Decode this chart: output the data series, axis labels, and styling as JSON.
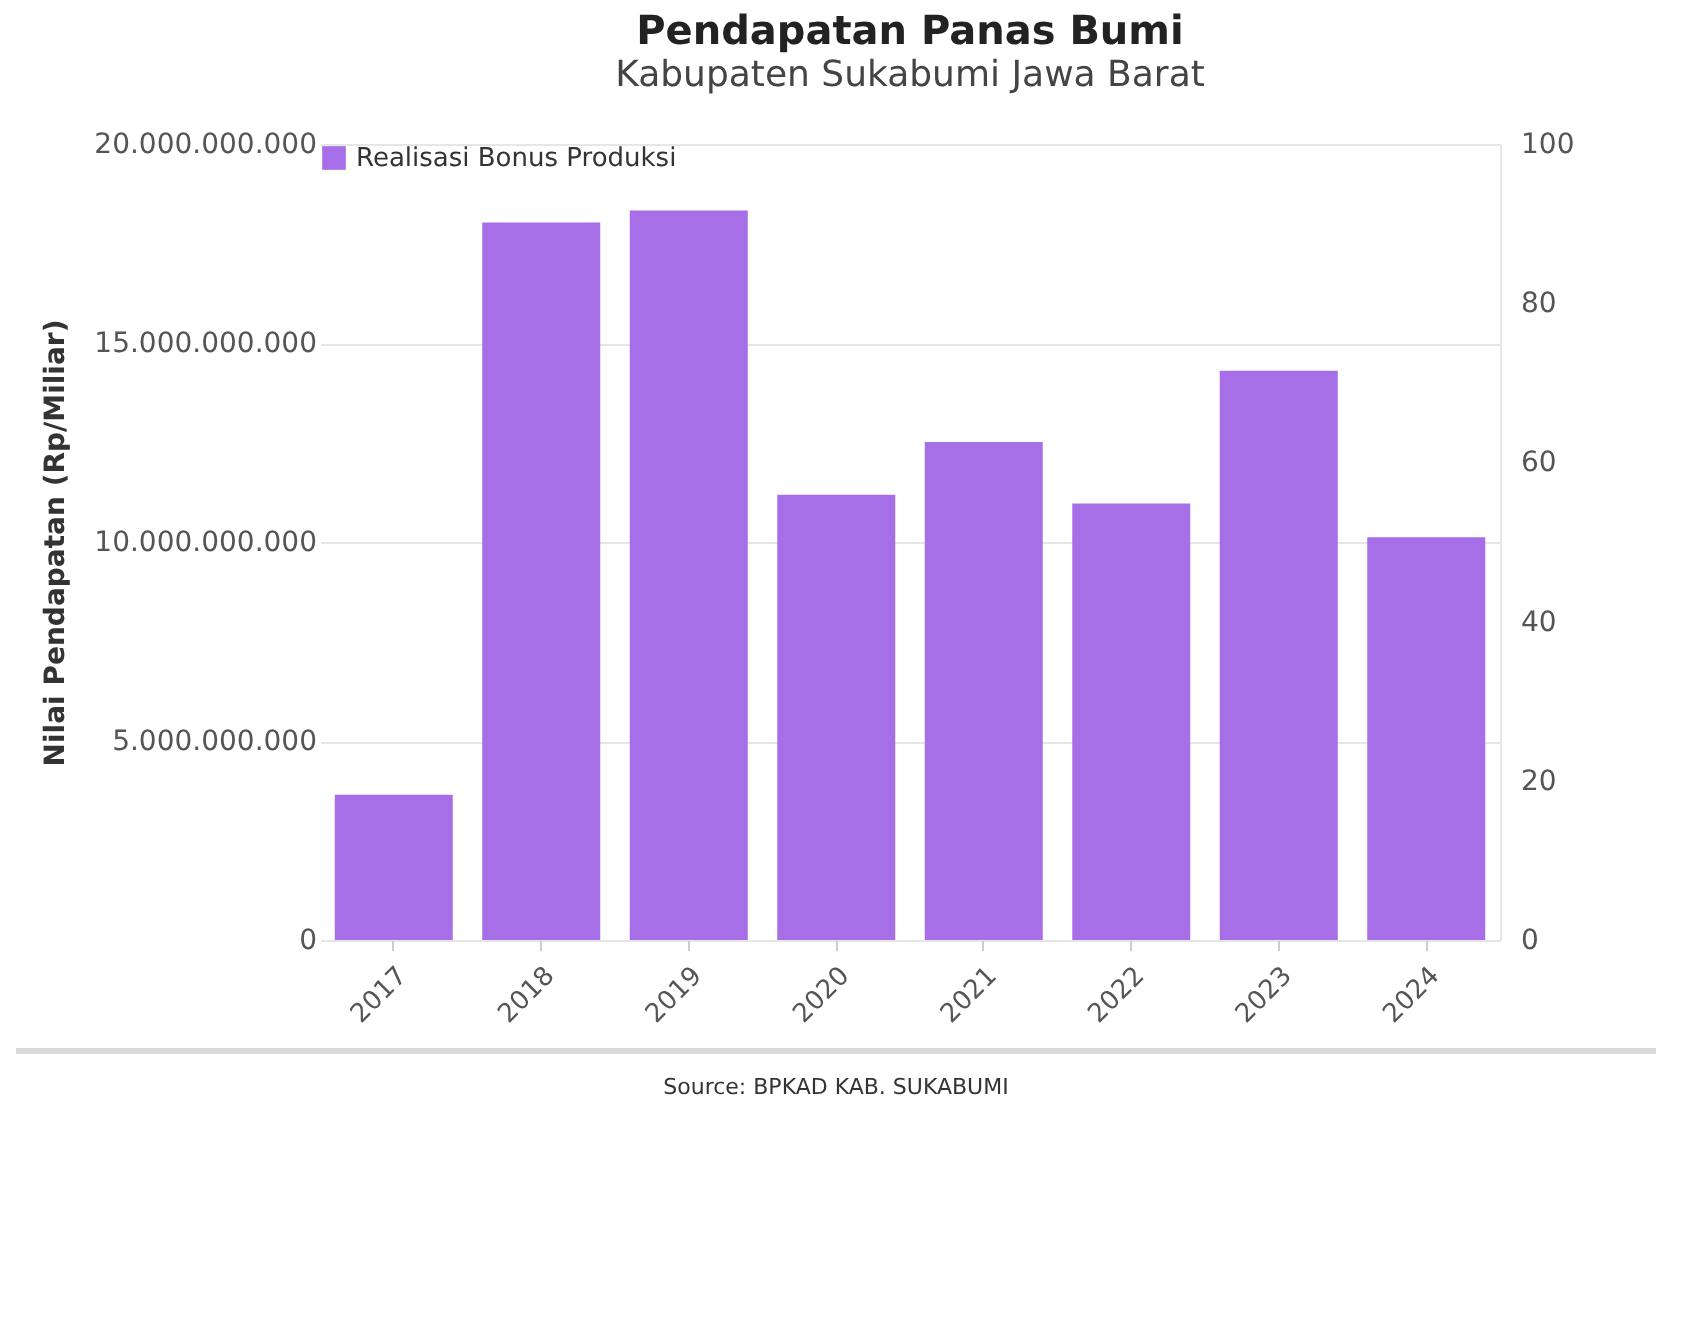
{
  "chart_data": {
    "type": "bar",
    "title": "Pendapatan Panas Bumi",
    "subtitle": "Kabupaten Sukabumi Jawa Barat",
    "ylabel": "Nilai Pendapatan (Rp/Miliar)",
    "categories": [
      "2017",
      "2018",
      "2019",
      "2020",
      "2021",
      "2022",
      "2023",
      "2024"
    ],
    "series": [
      {
        "name": "Realisasi Bonus Produksi",
        "color": "#a66fe8",
        "values": [
          3650000000,
          18030000000,
          18330000000,
          11190000000,
          12510000000,
          10970000000,
          14300000000,
          10120000000
        ]
      }
    ],
    "ylim": [
      0,
      20000000000
    ],
    "yticks": [
      {
        "value": 0,
        "label": "0"
      },
      {
        "value": 5000000000,
        "label": "5.000.000.000"
      },
      {
        "value": 10000000000,
        "label": "10.000.000.000"
      },
      {
        "value": 15000000000,
        "label": "15.000.000.000"
      },
      {
        "value": 20000000000,
        "label": "20.000.000.000"
      }
    ],
    "y2lim": [
      0,
      100
    ],
    "y2ticks": [
      0,
      20,
      40,
      60,
      80,
      100
    ],
    "grid": "y",
    "legend": "top left",
    "annotations": [
      "Source: BPKAD KAB. SUKABUMI"
    ]
  }
}
